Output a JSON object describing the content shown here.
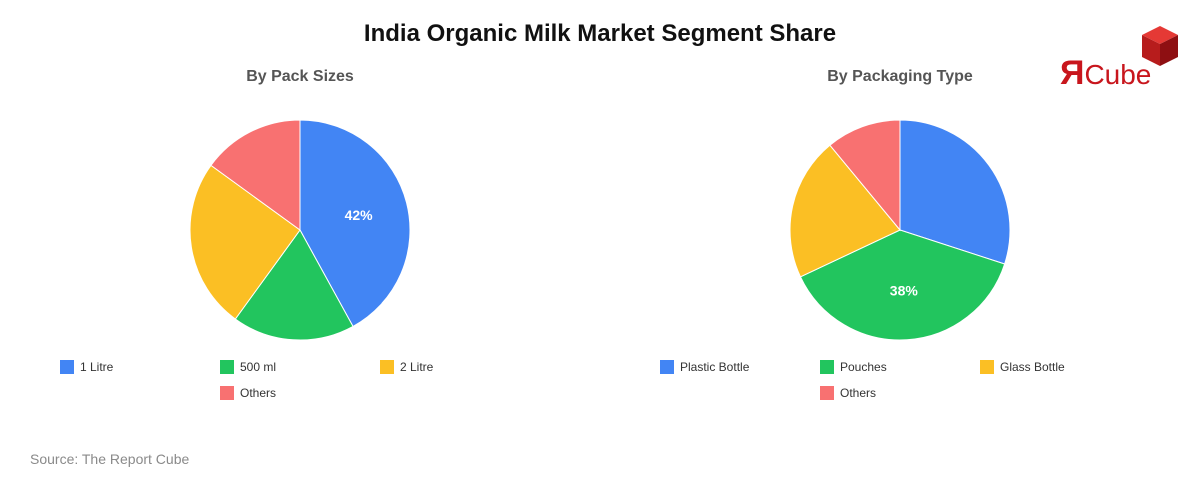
{
  "title": "India Organic Milk Market Segment Share",
  "logo": {
    "r": "Я",
    "text": "Cube"
  },
  "source": "Source: The Report Cube",
  "chart_data": [
    {
      "type": "pie",
      "title": "By Pack Sizes",
      "categories": [
        "1 Litre",
        "500 ml",
        "2 Litre",
        "Others"
      ],
      "values": [
        42,
        18,
        25,
        15
      ],
      "colors": [
        "#4285f4",
        "#22c55e",
        "#fbbf24",
        "#f87171"
      ],
      "data_labels": [
        "42%",
        "",
        "",
        ""
      ],
      "legend": "bottom"
    },
    {
      "type": "pie",
      "title": "By Packaging Type",
      "categories": [
        "Plastic Bottle",
        "Pouches",
        "Glass Bottle",
        "Others"
      ],
      "values": [
        30,
        38,
        21,
        11
      ],
      "colors": [
        "#4285f4",
        "#22c55e",
        "#fbbf24",
        "#f87171"
      ],
      "data_labels": [
        "",
        "38%",
        "",
        ""
      ],
      "legend": "bottom"
    }
  ]
}
